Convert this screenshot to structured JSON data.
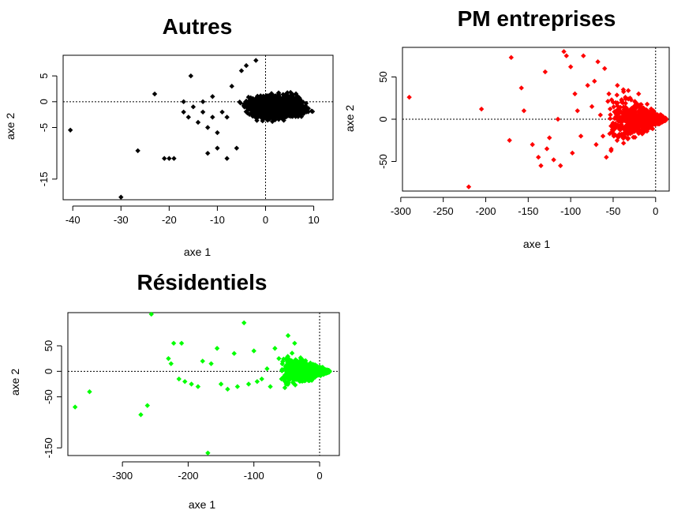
{
  "chart_data": [
    {
      "type": "scatter",
      "title": "Autres",
      "xlabel": "axe 1",
      "ylabel": "axe 2",
      "xlim": [
        -42,
        14
      ],
      "ylim": [
        -19,
        9
      ],
      "xticks": [
        -40,
        -30,
        -20,
        -10,
        0,
        10
      ],
      "yticks": [
        5,
        0,
        -5,
        -15
      ],
      "color": "#000000",
      "reference_lines": {
        "x": 0,
        "y": 0
      },
      "points": [
        [
          -40.5,
          -5.5
        ],
        [
          -30,
          -18.5
        ],
        [
          -26.5,
          -9.5
        ],
        [
          -23,
          1.5
        ],
        [
          -21,
          -11
        ],
        [
          -20,
          -11
        ],
        [
          -19,
          -11
        ],
        [
          -15.5,
          5
        ],
        [
          -17,
          0
        ],
        [
          -17,
          -2
        ],
        [
          -16,
          -3
        ],
        [
          -15,
          -1
        ],
        [
          -14,
          -4
        ],
        [
          -13,
          0
        ],
        [
          -13,
          -2
        ],
        [
          -12,
          -5
        ],
        [
          -12,
          -10
        ],
        [
          -11,
          -3
        ],
        [
          -11,
          1
        ],
        [
          -10,
          -6
        ],
        [
          -10,
          -9
        ],
        [
          -9,
          -2
        ],
        [
          -8,
          -11
        ],
        [
          -8,
          -3
        ],
        [
          -7,
          3
        ],
        [
          -6,
          -9
        ],
        [
          -5,
          6
        ],
        [
          -4,
          7
        ],
        [
          -2,
          8
        ]
      ],
      "cluster": {
        "x_range": [
          -8,
          12
        ],
        "y_range": [
          -7,
          5
        ],
        "shape": "ellipse-rotated",
        "angle_deg": 20
      }
    },
    {
      "type": "scatter",
      "title": "PM entreprises",
      "xlabel": "axe 1",
      "ylabel": "axe 2",
      "xlim": [
        -298,
        16
      ],
      "ylim": [
        -85,
        85
      ],
      "xticks": [
        -300,
        -250,
        -200,
        -150,
        -100,
        -50,
        0
      ],
      "yticks": [
        50,
        0,
        -50
      ],
      "color": "#ff0000",
      "reference_lines": {
        "x": 0,
        "y": 0
      },
      "points": [
        [
          -290,
          26
        ],
        [
          -220,
          -80
        ],
        [
          -205,
          12
        ],
        [
          -170,
          73
        ],
        [
          -172,
          -25
        ],
        [
          -158,
          37
        ],
        [
          -155,
          10
        ],
        [
          -145,
          -30
        ],
        [
          -138,
          -45
        ],
        [
          -135,
          -55
        ],
        [
          -130,
          56
        ],
        [
          -128,
          -35
        ],
        [
          -125,
          -22
        ],
        [
          -120,
          -48
        ],
        [
          -115,
          0
        ],
        [
          -112,
          -55
        ],
        [
          -108,
          80
        ],
        [
          -105,
          75
        ],
        [
          -100,
          62
        ],
        [
          -98,
          -40
        ],
        [
          -95,
          30
        ],
        [
          -92,
          10
        ],
        [
          -88,
          -20
        ],
        [
          -85,
          75
        ],
        [
          -80,
          40
        ],
        [
          -75,
          15
        ],
        [
          -72,
          45
        ],
        [
          -70,
          -30
        ],
        [
          -68,
          68
        ],
        [
          -65,
          5
        ],
        [
          -62,
          -20
        ],
        [
          -60,
          60
        ],
        [
          -58,
          -45
        ],
        [
          -55,
          30
        ],
        [
          -50,
          20
        ],
        [
          -48,
          -10
        ],
        [
          -45,
          40
        ],
        [
          -42,
          10
        ],
        [
          -40,
          -20
        ],
        [
          -38,
          35
        ],
        [
          -35,
          0
        ],
        [
          -30,
          25
        ],
        [
          -28,
          -15
        ],
        [
          -25,
          15
        ],
        [
          -22,
          -5
        ],
        [
          -20,
          30
        ],
        [
          -15,
          10
        ],
        [
          -12,
          -5
        ],
        [
          -8,
          5
        ]
      ],
      "cluster": {
        "x_range": [
          -60,
          12
        ],
        "y_range": [
          -30,
          30
        ],
        "shape": "fan-to-right"
      }
    },
    {
      "type": "scatter",
      "title": "Résidentiels",
      "xlabel": "axe 1",
      "ylabel": "axe 2",
      "xlim": [
        -383,
        30
      ],
      "ylim": [
        -165,
        115
      ],
      "xticks": [
        -300,
        -200,
        -100,
        0
      ],
      "yticks": [
        50,
        0,
        -50,
        -150
      ],
      "color": "#00ff00",
      "reference_lines": {
        "x": 0,
        "y": 0
      },
      "points": [
        [
          -372,
          -70
        ],
        [
          -350,
          -40
        ],
        [
          -272,
          -85
        ],
        [
          -262,
          -67
        ],
        [
          -256,
          112
        ],
        [
          -230,
          25
        ],
        [
          -226,
          15
        ],
        [
          -222,
          55
        ],
        [
          -214,
          -15
        ],
        [
          -210,
          55
        ],
        [
          -205,
          -20
        ],
        [
          -195,
          -25
        ],
        [
          -185,
          -30
        ],
        [
          -178,
          20
        ],
        [
          -170,
          -160
        ],
        [
          -165,
          15
        ],
        [
          -156,
          45
        ],
        [
          -150,
          -25
        ],
        [
          -140,
          -35
        ],
        [
          -130,
          35
        ],
        [
          -125,
          -30
        ],
        [
          -115,
          95
        ],
        [
          -108,
          -25
        ],
        [
          -100,
          40
        ],
        [
          -95,
          -20
        ],
        [
          -88,
          -15
        ],
        [
          -80,
          5
        ],
        [
          -75,
          -30
        ],
        [
          -68,
          45
        ],
        [
          -62,
          25
        ],
        [
          -58,
          -15
        ],
        [
          -52,
          10
        ],
        [
          -48,
          70
        ],
        [
          -42,
          -10
        ],
        [
          -38,
          55
        ],
        [
          -34,
          20
        ],
        [
          -28,
          -5
        ],
        [
          -22,
          15
        ],
        [
          -16,
          0
        ],
        [
          -10,
          5
        ]
      ],
      "cluster": {
        "x_range": [
          -60,
          15
        ],
        "y_range": [
          -25,
          30
        ],
        "shape": "fan-to-right"
      }
    }
  ]
}
